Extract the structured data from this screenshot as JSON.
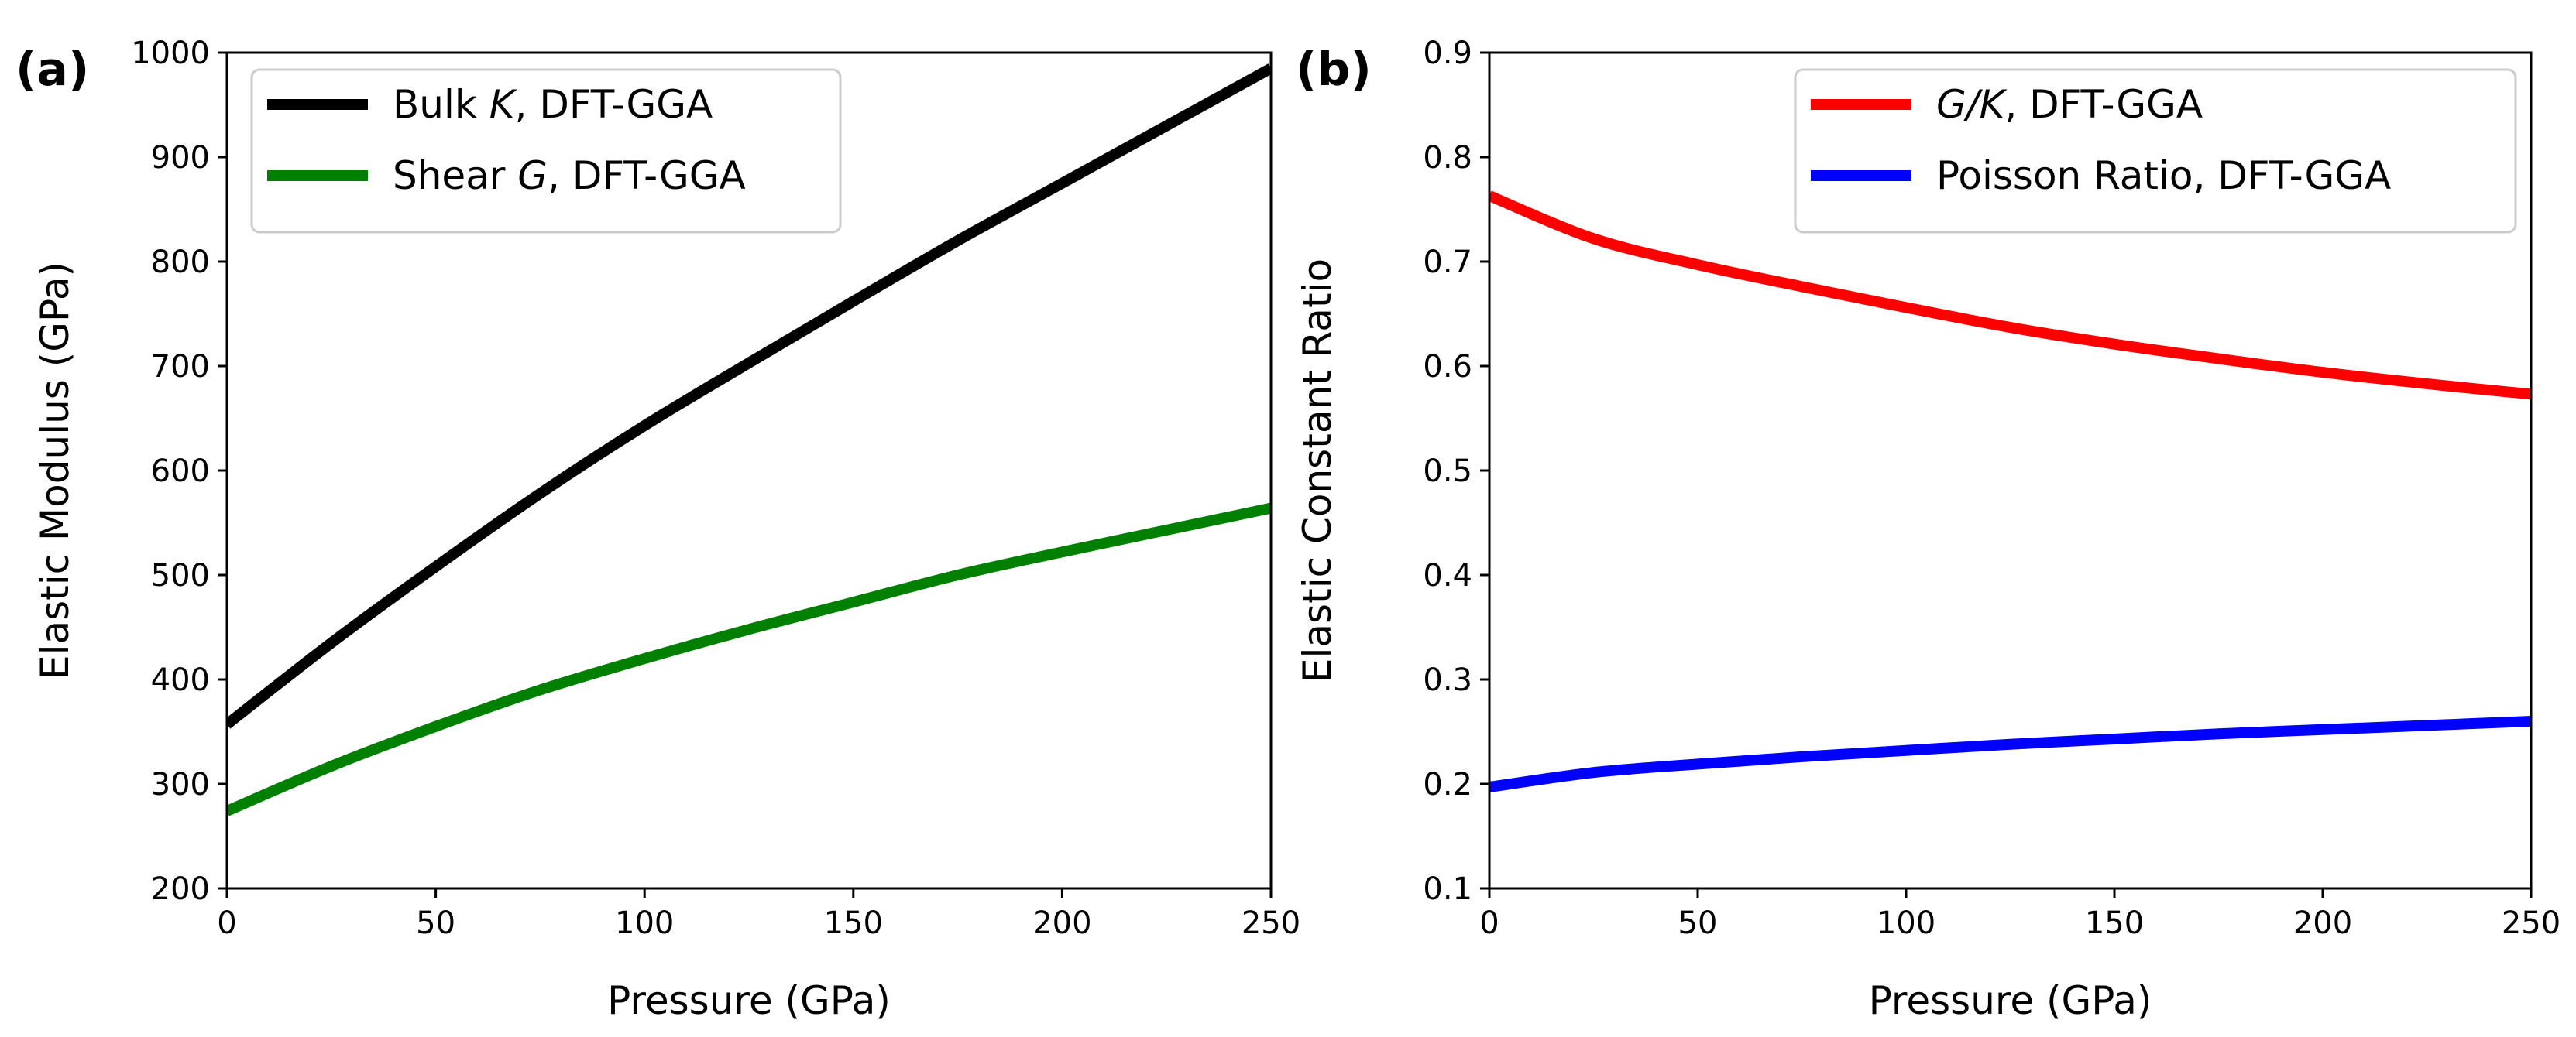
{
  "chart_data": [
    {
      "type": "line",
      "panel_label": "(a)",
      "xlabel": "Pressure (GPa)",
      "ylabel": "Elastic Modulus (GPa)",
      "xlim": [
        0,
        250
      ],
      "ylim": [
        200,
        1000
      ],
      "xticks": [
        0,
        50,
        100,
        150,
        200,
        250
      ],
      "yticks": [
        200,
        300,
        400,
        500,
        600,
        700,
        800,
        900,
        1000
      ],
      "grid": false,
      "legend": "top-left",
      "x": [
        0,
        25,
        50,
        75,
        100,
        125,
        150,
        175,
        200,
        225,
        250
      ],
      "series": [
        {
          "legend": {
            "pre": "Bulk ",
            "var": "K",
            "post": ", DFT-GGA"
          },
          "color": "#000000",
          "values": [
            357,
            435,
            508,
            578,
            643,
            703,
            762,
            820,
            875,
            930,
            985
          ]
        },
        {
          "legend": {
            "pre": "Shear ",
            "var": "G",
            "post": ", DFT-GGA"
          },
          "color": "#008000",
          "values": [
            274,
            317,
            355,
            390,
            420,
            448,
            474,
            500,
            522,
            543,
            564
          ]
        }
      ]
    },
    {
      "type": "line",
      "panel_label": "(b)",
      "xlabel": "Pressure (GPa)",
      "ylabel": "Elastic Constant Ratio",
      "xlim": [
        0,
        250
      ],
      "ylim": [
        0.1,
        0.9
      ],
      "xticks": [
        0,
        50,
        100,
        150,
        200,
        250
      ],
      "yticks": [
        0.1,
        0.2,
        0.3,
        0.4,
        0.5,
        0.6,
        0.7,
        0.8,
        0.9
      ],
      "grid": false,
      "legend": "top-right",
      "x": [
        0,
        25,
        50,
        75,
        100,
        125,
        150,
        175,
        200,
        225,
        250
      ],
      "series": [
        {
          "legend": {
            "pre": "",
            "var": "G/K",
            "post": ", DFT-GGA"
          },
          "color": "#ff0000",
          "values": [
            0.763,
            0.722,
            0.697,
            0.676,
            0.656,
            0.637,
            0.621,
            0.607,
            0.594,
            0.583,
            0.573
          ]
        },
        {
          "legend": {
            "pre": "",
            "var": "",
            "post": "Poisson Ratio, DFT-GGA"
          },
          "color": "#0000ff",
          "values": [
            0.197,
            0.211,
            0.219,
            0.226,
            0.232,
            0.238,
            0.243,
            0.248,
            0.252,
            0.256,
            0.26
          ]
        }
      ]
    }
  ]
}
